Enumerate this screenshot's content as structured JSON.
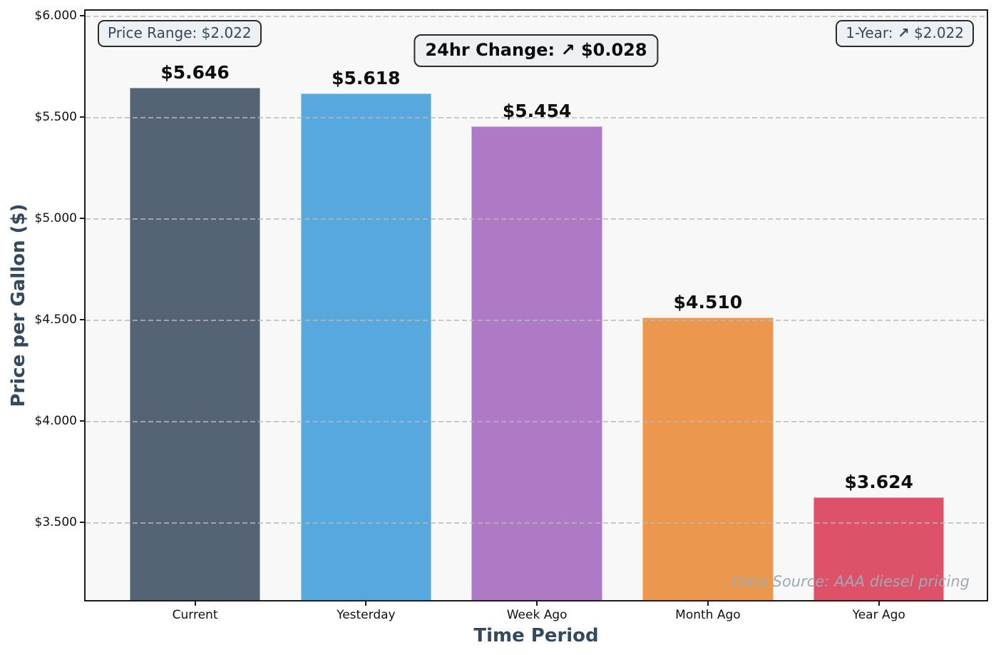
{
  "chart_data": {
    "type": "bar",
    "title": "",
    "categories": [
      "Current",
      "Yesterday",
      "Week Ago",
      "Month Ago",
      "Year Ago"
    ],
    "values": [
      5.646,
      5.618,
      5.454,
      4.51,
      3.624
    ],
    "bar_value_labels": [
      "$5.646",
      "$5.618",
      "$5.454",
      "$4.510",
      "$3.624"
    ],
    "bar_colors": [
      "#546474",
      "#56a8de",
      "#af7ac5",
      "#eb984e",
      "#dd5268"
    ],
    "xlabel": "Time Period",
    "ylabel": "Price per Gallon ($)",
    "ylim": [
      3.115,
      6.025
    ],
    "yticks": [
      {
        "value": 6.0,
        "label": "$6.000"
      },
      {
        "value": 5.5,
        "label": "$5.500"
      },
      {
        "value": 5.0,
        "label": "$5.000"
      },
      {
        "value": 4.5,
        "label": "$4.500"
      },
      {
        "value": 4.0,
        "label": "$4.000"
      },
      {
        "value": 3.5,
        "label": "$3.500"
      }
    ],
    "grid": {
      "axis": "y",
      "style": "dashed",
      "on": true
    },
    "legend": null
  },
  "annotations": {
    "price_range": {
      "text": "Price Range: $2.022"
    },
    "change_24hr": {
      "label": "24hr Change:",
      "arrow": "↗",
      "value": "$0.028"
    },
    "one_year": {
      "label": "1-Year:",
      "arrow": "↗",
      "value": "$2.022"
    },
    "watermark": "Data Source: AAA diesel pricing"
  },
  "colors": {
    "axis_label": "#34495e",
    "badge_text": "#34495e",
    "badge_bg": "#eef1f3",
    "badge_border": "#2b2b2b",
    "plot_bg": "#f8f8f8",
    "figure_bg": "#ffffff",
    "spine": "#1c1c1c",
    "grid": "#b9b9b9",
    "value_label": "#0d0d0d",
    "watermark": "#9fabb1",
    "bar_current": "#546474",
    "bar_yesterday": "#56a8de",
    "bar_week_ago": "#af7ac5",
    "bar_month_ago": "#eb984e",
    "bar_year_ago": "#dd5268"
  }
}
